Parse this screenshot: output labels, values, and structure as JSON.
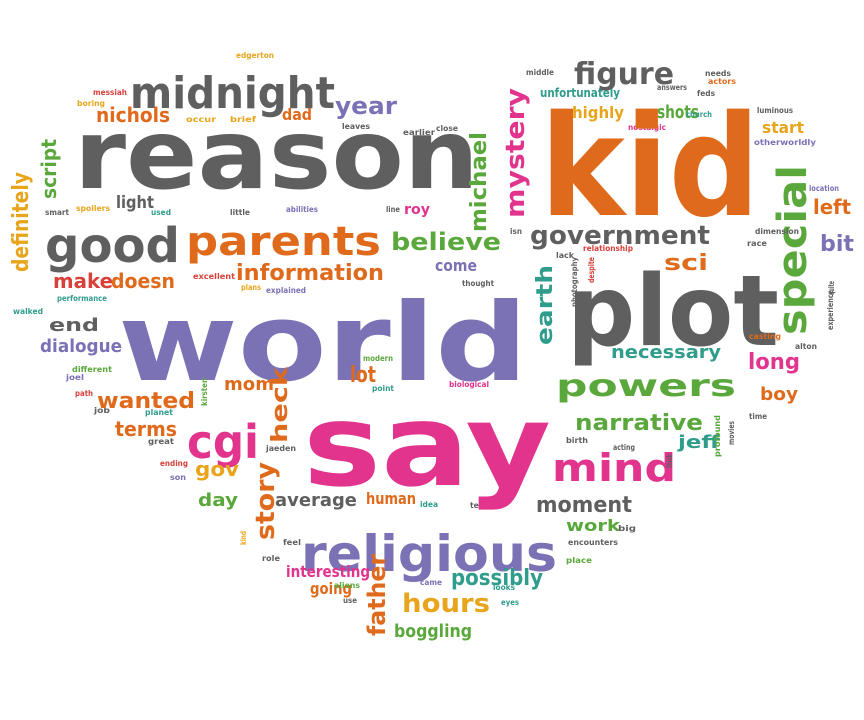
{
  "colors": {
    "gray": "#5f5f5f",
    "orange": "#e06a1b",
    "purple": "#7a72b5",
    "pink": "#e2338d",
    "green": "#5aa83c",
    "teal": "#2f9c8c",
    "yellow": "#e8a51c",
    "red": "#d8413a",
    "background": "#ffffff"
  },
  "words": [
    {
      "text": "edgerton",
      "color": "yellow"
    },
    {
      "text": "messiah",
      "color": "red"
    },
    {
      "text": "boring",
      "color": "yellow"
    },
    {
      "text": "midnight",
      "color": "gray"
    },
    {
      "text": "year",
      "color": "purple"
    },
    {
      "text": "nichols",
      "color": "orange"
    },
    {
      "text": "occur",
      "color": "yellow"
    },
    {
      "text": "brief",
      "color": "yellow"
    },
    {
      "text": "dad",
      "color": "orange"
    },
    {
      "text": "leaves",
      "color": "gray"
    },
    {
      "text": "earlier",
      "color": "gray"
    },
    {
      "text": "close",
      "color": "gray"
    },
    {
      "text": "reason",
      "color": "gray"
    },
    {
      "text": "script",
      "color": "green"
    },
    {
      "text": "definitely",
      "color": "yellow"
    },
    {
      "text": "smart",
      "color": "gray"
    },
    {
      "text": "spoilers",
      "color": "yellow"
    },
    {
      "text": "light",
      "color": "gray"
    },
    {
      "text": "used",
      "color": "teal"
    },
    {
      "text": "little",
      "color": "gray"
    },
    {
      "text": "abilities",
      "color": "purple"
    },
    {
      "text": "michael",
      "color": "green"
    },
    {
      "text": "line",
      "color": "gray"
    },
    {
      "text": "roy",
      "color": "pink"
    },
    {
      "text": "good",
      "color": "gray"
    },
    {
      "text": "parents",
      "color": "orange"
    },
    {
      "text": "believe",
      "color": "green"
    },
    {
      "text": "make",
      "color": "red"
    },
    {
      "text": "doesn",
      "color": "orange"
    },
    {
      "text": "information",
      "color": "orange"
    },
    {
      "text": "come",
      "color": "purple"
    },
    {
      "text": "performance",
      "color": "teal"
    },
    {
      "text": "excellent",
      "color": "red"
    },
    {
      "text": "plans",
      "color": "yellow"
    },
    {
      "text": "explained",
      "color": "purple"
    },
    {
      "text": "thought",
      "color": "gray"
    },
    {
      "text": "walked",
      "color": "teal"
    },
    {
      "text": "end",
      "color": "gray"
    },
    {
      "text": "dialogue",
      "color": "purple"
    },
    {
      "text": "world",
      "color": "purple"
    },
    {
      "text": "different",
      "color": "green"
    },
    {
      "text": "joel",
      "color": "purple"
    },
    {
      "text": "path",
      "color": "red"
    },
    {
      "text": "job",
      "color": "gray"
    },
    {
      "text": "wanted",
      "color": "orange"
    },
    {
      "text": "mom",
      "color": "orange"
    },
    {
      "text": "planet",
      "color": "teal"
    },
    {
      "text": "kirsten",
      "color": "green"
    },
    {
      "text": "heck",
      "color": "orange"
    },
    {
      "text": "lot",
      "color": "orange"
    },
    {
      "text": "modern",
      "color": "green"
    },
    {
      "text": "point",
      "color": "teal"
    },
    {
      "text": "biological",
      "color": "pink"
    },
    {
      "text": "terms",
      "color": "orange"
    },
    {
      "text": "great",
      "color": "gray"
    },
    {
      "text": "cgi",
      "color": "pink"
    },
    {
      "text": "gov",
      "color": "yellow"
    },
    {
      "text": "ending",
      "color": "red"
    },
    {
      "text": "son",
      "color": "purple"
    },
    {
      "text": "jaeden",
      "color": "gray"
    },
    {
      "text": "day",
      "color": "green"
    },
    {
      "text": "story",
      "color": "orange"
    },
    {
      "text": "average",
      "color": "gray"
    },
    {
      "text": "human",
      "color": "orange"
    },
    {
      "text": "idea",
      "color": "teal"
    },
    {
      "text": "tell",
      "color": "gray"
    },
    {
      "text": "kind",
      "color": "yellow"
    },
    {
      "text": "feel",
      "color": "gray"
    },
    {
      "text": "role",
      "color": "gray"
    },
    {
      "text": "religious",
      "color": "purple"
    },
    {
      "text": "interesting",
      "color": "pink"
    },
    {
      "text": "going",
      "color": "orange"
    },
    {
      "text": "father",
      "color": "orange"
    },
    {
      "text": "aliens",
      "color": "green"
    },
    {
      "text": "use",
      "color": "gray"
    },
    {
      "text": "came",
      "color": "purple"
    },
    {
      "text": "hours",
      "color": "yellow"
    },
    {
      "text": "possibly",
      "color": "teal"
    },
    {
      "text": "boggling",
      "color": "green"
    },
    {
      "text": "looks",
      "color": "teal"
    },
    {
      "text": "eyes",
      "color": "teal"
    },
    {
      "text": "say",
      "color": "pink"
    },
    {
      "text": "middle",
      "color": "gray"
    },
    {
      "text": "unfortunately",
      "color": "teal"
    },
    {
      "text": "figure",
      "color": "gray"
    },
    {
      "text": "answers",
      "color": "gray"
    },
    {
      "text": "needs",
      "color": "gray"
    },
    {
      "text": "actors",
      "color": "orange"
    },
    {
      "text": "feds",
      "color": "gray"
    },
    {
      "text": "highly",
      "color": "yellow"
    },
    {
      "text": "nostalgic",
      "color": "pink"
    },
    {
      "text": "shots",
      "color": "green"
    },
    {
      "text": "church",
      "color": "teal"
    },
    {
      "text": "luminous",
      "color": "gray"
    },
    {
      "text": "start",
      "color": "yellow"
    },
    {
      "text": "otherworldly",
      "color": "purple"
    },
    {
      "text": "mystery",
      "color": "pink"
    },
    {
      "text": "kid",
      "color": "orange"
    },
    {
      "text": "special",
      "color": "green"
    },
    {
      "text": "location",
      "color": "purple"
    },
    {
      "text": "left",
      "color": "orange"
    },
    {
      "text": "government",
      "color": "gray"
    },
    {
      "text": "isn",
      "color": "gray"
    },
    {
      "text": "lack",
      "color": "gray"
    },
    {
      "text": "relationship",
      "color": "red"
    },
    {
      "text": "dimension",
      "color": "gray"
    },
    {
      "text": "race",
      "color": "gray"
    },
    {
      "text": "bit",
      "color": "purple"
    },
    {
      "text": "sci",
      "color": "orange"
    },
    {
      "text": "quite",
      "color": "gray"
    },
    {
      "text": "experience",
      "color": "gray"
    },
    {
      "text": "earth",
      "color": "teal"
    },
    {
      "text": "photography",
      "color": "gray"
    },
    {
      "text": "despite",
      "color": "red"
    },
    {
      "text": "plot",
      "color": "gray"
    },
    {
      "text": "casting",
      "color": "orange"
    },
    {
      "text": "alton",
      "color": "gray"
    },
    {
      "text": "necessary",
      "color": "teal"
    },
    {
      "text": "long",
      "color": "pink"
    },
    {
      "text": "powers",
      "color": "green"
    },
    {
      "text": "boy",
      "color": "orange"
    },
    {
      "text": "narrative",
      "color": "green"
    },
    {
      "text": "time",
      "color": "gray"
    },
    {
      "text": "movies",
      "color": "gray"
    },
    {
      "text": "mind",
      "color": "pink"
    },
    {
      "text": "jeff",
      "color": "teal"
    },
    {
      "text": "birth",
      "color": "gray"
    },
    {
      "text": "acting",
      "color": "gray"
    },
    {
      "text": "think",
      "color": "gray"
    },
    {
      "text": "profound",
      "color": "green"
    },
    {
      "text": "moment",
      "color": "gray"
    },
    {
      "text": "work",
      "color": "green"
    },
    {
      "text": "big",
      "color": "gray"
    },
    {
      "text": "encounters",
      "color": "gray"
    },
    {
      "text": "place",
      "color": "green"
    }
  ]
}
